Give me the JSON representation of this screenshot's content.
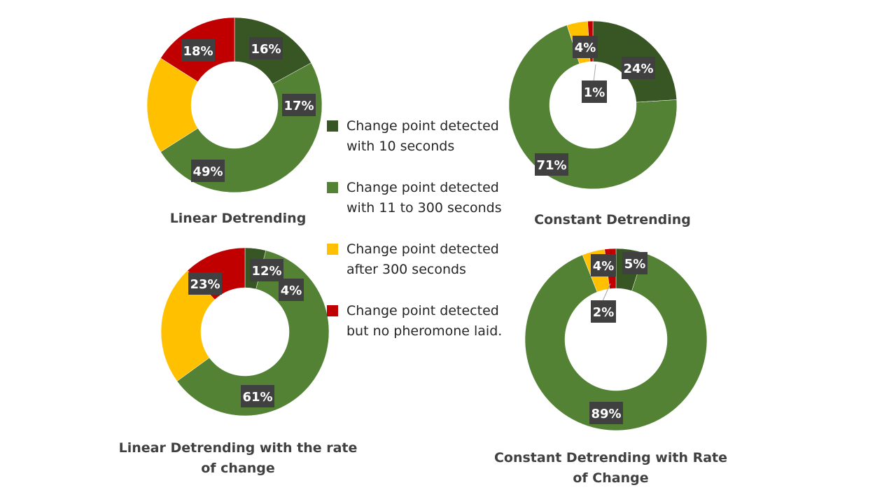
{
  "chart_data": [
    {
      "type": "pie",
      "title": "Linear Detrending",
      "categories": [
        "Change point detected with 10 seconds",
        "Change point detected with 11 to 300 seconds",
        "Change point detected after 300 seconds",
        "Change point detected but no pheromone laid."
      ],
      "values": [
        17,
        49,
        18,
        16
      ],
      "labels": [
        "17%",
        "49%",
        "18%",
        "16%"
      ]
    },
    {
      "type": "pie",
      "title": "Constant Detrending",
      "categories": [
        "Change point detected with 10 seconds",
        "Change point detected with 11 to 300 seconds",
        "Change point detected after 300 seconds",
        "Change point detected but no pheromone laid."
      ],
      "values": [
        24,
        71,
        4,
        1
      ],
      "labels": [
        "24%",
        "71%",
        "4%",
        "1%"
      ]
    },
    {
      "type": "pie",
      "title": "Linear Detrending with  the rate of change",
      "categories": [
        "Change point detected with 10 seconds",
        "Change point detected with 11 to 300 seconds",
        "Change point detected after 300 seconds",
        "Change point detected but no pheromone laid."
      ],
      "values": [
        4,
        61,
        23,
        12
      ],
      "labels": [
        "4%",
        "61%",
        "23%",
        "12%"
      ]
    },
    {
      "type": "pie",
      "title": "Constant Detrending with Rate of Change",
      "categories": [
        "Change point detected with 10 seconds",
        "Change point detected with 11 to 300 seconds",
        "Change point detected after 300 seconds",
        "Change point detected but no pheromone laid."
      ],
      "values": [
        5,
        89,
        4,
        2
      ],
      "labels": [
        "5%",
        "89%",
        "4%",
        "2%"
      ]
    }
  ],
  "legend": [
    {
      "label": "Change point detected with 10 seconds",
      "color": "#375623"
    },
    {
      "label": "Change point detected with 11 to 300 seconds",
      "color": "#548235"
    },
    {
      "label": "Change point detected after 300 seconds",
      "color": "#FFC000"
    },
    {
      "label": "Change point detected but no pheromone laid.",
      "color": "#C00000"
    }
  ],
  "colors": [
    "#375623",
    "#548235",
    "#FFC000",
    "#C00000"
  ],
  "label_box_color": "#404040"
}
